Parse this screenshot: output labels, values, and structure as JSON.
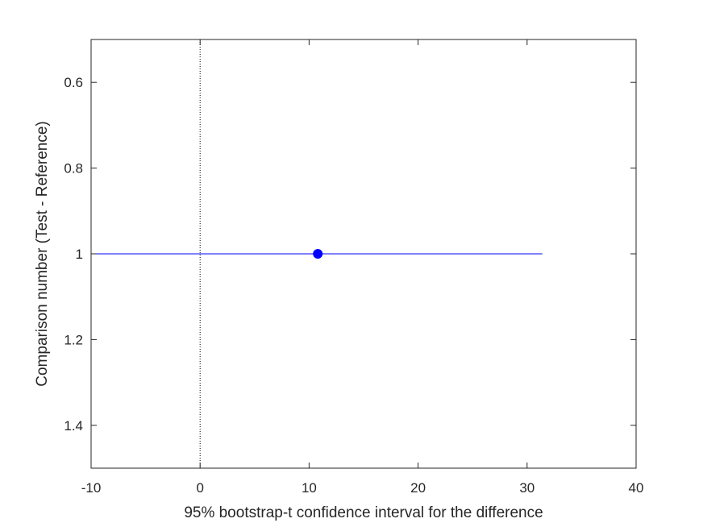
{
  "chart_data": {
    "type": "scatter",
    "title": "",
    "xlabel": "95% bootstrap-t confidence interval for the difference",
    "ylabel": "Comparison number (Test - Reference)",
    "xlim": [
      -10,
      40
    ],
    "ylim": [
      0.5,
      1.5
    ],
    "y_reversed": true,
    "grid": false,
    "legend": "none",
    "x_ticks": [
      -10,
      0,
      10,
      20,
      30,
      40
    ],
    "x_tick_labels": [
      "-10",
      "0",
      "10",
      "20",
      "30",
      "40"
    ],
    "y_ticks": [
      0.6,
      0.8,
      1.0,
      1.2,
      1.4
    ],
    "y_tick_labels": [
      "0.6",
      "0.8",
      "1",
      "1.2",
      "1.4"
    ],
    "reference_line": {
      "x": 0,
      "style": "dotted",
      "color": "#000000"
    },
    "series": [
      {
        "color": "#0000ff",
        "points": [
          {
            "comparison": 1,
            "estimate": 10.8,
            "ci_low": -10,
            "ci_high": 31.4
          }
        ]
      }
    ]
  }
}
